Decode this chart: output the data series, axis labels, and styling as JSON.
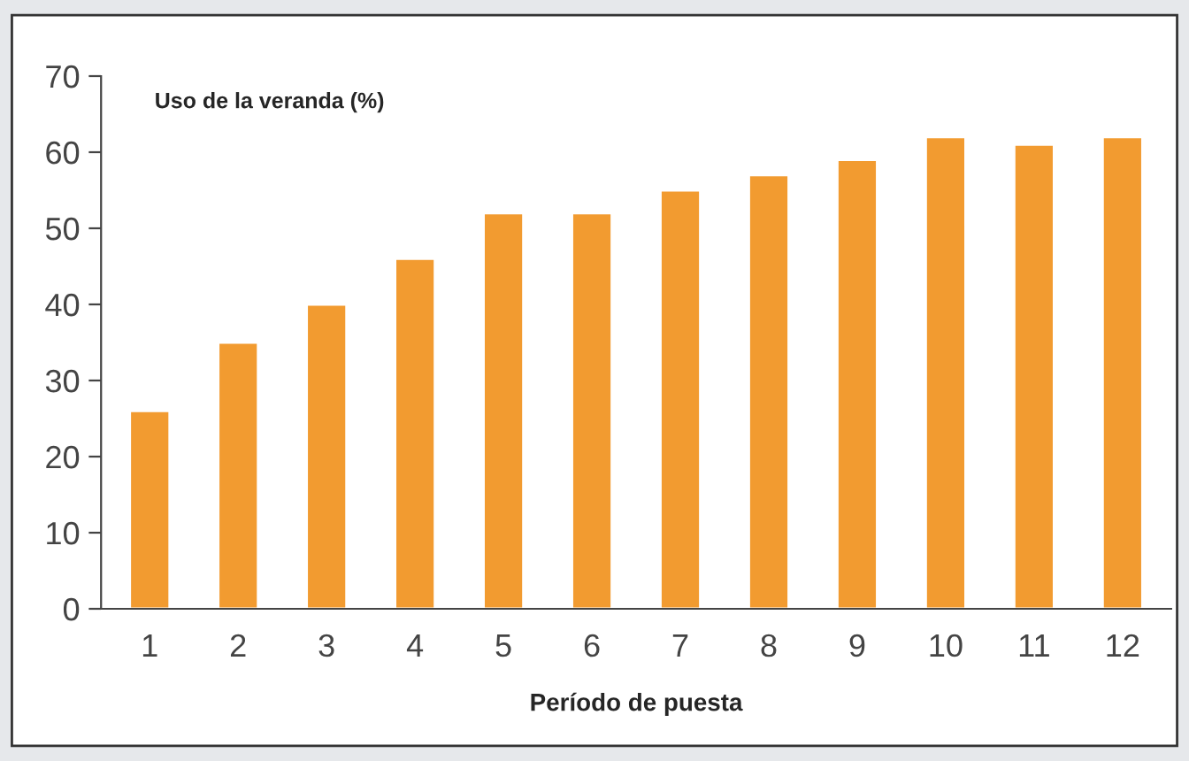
{
  "chart_data": {
    "type": "bar",
    "title": "Uso de la veranda (%)",
    "xlabel": "Período de puesta",
    "categories": [
      "1",
      "2",
      "3",
      "4",
      "5",
      "6",
      "7",
      "8",
      "9",
      "10",
      "11",
      "12"
    ],
    "values": [
      26,
      35,
      40,
      46,
      52,
      52,
      55,
      57,
      59,
      62,
      61,
      62
    ],
    "color": "#f29b30",
    "ylim": [
      0,
      70
    ],
    "yticks": [
      0,
      10,
      20,
      30,
      40,
      50,
      60,
      70
    ],
    "grid": false,
    "legend": false
  }
}
